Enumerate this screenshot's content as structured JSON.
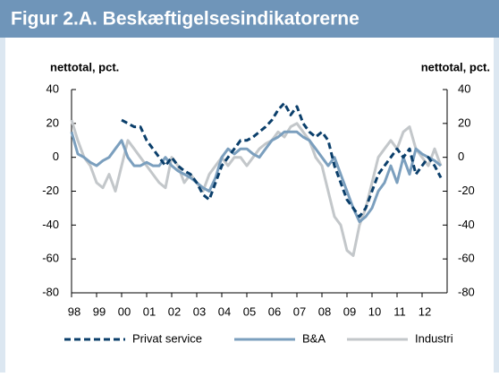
{
  "chart_data": {
    "type": "line",
    "title": "Figur 2.A. Beskæftigelsesindikatorerne",
    "ylabel": "nettotal, pct.",
    "y2label": "nettotal, pct.",
    "x": [
      1998,
      1998.25,
      1998.5,
      1998.75,
      1999,
      1999.25,
      1999.5,
      1999.75,
      2000,
      2000.25,
      2000.5,
      2000.75,
      2001,
      2001.25,
      2001.5,
      2001.75,
      2002,
      2002.25,
      2002.5,
      2002.75,
      2003,
      2003.25,
      2003.5,
      2003.75,
      2004,
      2004.25,
      2004.5,
      2004.75,
      2005,
      2005.25,
      2005.5,
      2005.75,
      2006,
      2006.25,
      2006.5,
      2006.75,
      2007,
      2007.25,
      2007.5,
      2007.75,
      2008,
      2008.25,
      2008.5,
      2008.75,
      2009,
      2009.25,
      2009.5,
      2009.75,
      2010,
      2010.25,
      2010.5,
      2010.75,
      2011,
      2011.25,
      2011.5,
      2011.75,
      2012,
      2012.25,
      2012.5,
      2012.75
    ],
    "series": [
      {
        "name": "Privat service",
        "color": "#0b3f6b",
        "dashed": true,
        "values": [
          null,
          null,
          null,
          null,
          null,
          null,
          null,
          null,
          22,
          20,
          18,
          18,
          10,
          5,
          0,
          -5,
          0,
          -5,
          -8,
          -10,
          -15,
          -22,
          -25,
          -15,
          -5,
          0,
          5,
          10,
          10,
          12,
          15,
          18,
          22,
          28,
          32,
          25,
          30,
          20,
          15,
          12,
          15,
          10,
          -5,
          -15,
          -25,
          -30,
          -35,
          -30,
          -20,
          -10,
          -5,
          0,
          5,
          0,
          5,
          -10,
          -5,
          0,
          -5,
          -12
        ]
      },
      {
        "name": "B&A",
        "color": "#7b9fbe",
        "dashed": false,
        "values": [
          15,
          2,
          0,
          -3,
          -5,
          -2,
          0,
          5,
          10,
          0,
          -5,
          -5,
          -3,
          -5,
          -5,
          0,
          -5,
          -8,
          -10,
          -12,
          -15,
          -18,
          -20,
          -12,
          0,
          5,
          2,
          5,
          5,
          2,
          0,
          5,
          10,
          12,
          15,
          15,
          15,
          12,
          10,
          5,
          0,
          -5,
          0,
          -10,
          -20,
          -30,
          -38,
          -35,
          -30,
          -20,
          -15,
          -5,
          -15,
          0,
          -10,
          5,
          2,
          0,
          -2,
          -5
        ]
      },
      {
        "name": "Industri",
        "color": "#c3c7ca",
        "dashed": false,
        "values": [
          22,
          10,
          0,
          -5,
          -15,
          -18,
          -10,
          -20,
          -5,
          10,
          5,
          0,
          -5,
          -10,
          -15,
          -18,
          0,
          -5,
          -15,
          -10,
          -15,
          -20,
          -10,
          -5,
          0,
          -5,
          0,
          0,
          -5,
          0,
          5,
          8,
          10,
          15,
          12,
          18,
          20,
          15,
          10,
          0,
          -5,
          -20,
          -35,
          -40,
          -55,
          -58,
          -40,
          -30,
          -15,
          0,
          5,
          10,
          5,
          15,
          18,
          5,
          0,
          -5,
          5,
          -5
        ]
      }
    ],
    "xlim": [
      1998,
      2013
    ],
    "xticks": [
      {
        "value": 1998,
        "label": "98"
      },
      {
        "value": 1999,
        "label": "99"
      },
      {
        "value": 2000,
        "label": "00"
      },
      {
        "value": 2001,
        "label": "01"
      },
      {
        "value": 2002,
        "label": "02"
      },
      {
        "value": 2003,
        "label": "03"
      },
      {
        "value": 2004,
        "label": "04"
      },
      {
        "value": 2005,
        "label": "05"
      },
      {
        "value": 2006,
        "label": "06"
      },
      {
        "value": 2007,
        "label": "07"
      },
      {
        "value": 2008,
        "label": "08"
      },
      {
        "value": 2009,
        "label": "09"
      },
      {
        "value": 2010,
        "label": "10"
      },
      {
        "value": 2011,
        "label": "11"
      },
      {
        "value": 2012,
        "label": "12"
      }
    ],
    "ylim": [
      -80,
      40
    ],
    "yticks": [
      -80,
      -60,
      -40,
      -20,
      0,
      20,
      40
    ],
    "y2lim": [
      -80,
      40
    ],
    "y2ticks": [
      -80,
      -60,
      -40,
      -20,
      0,
      20,
      40
    ]
  }
}
